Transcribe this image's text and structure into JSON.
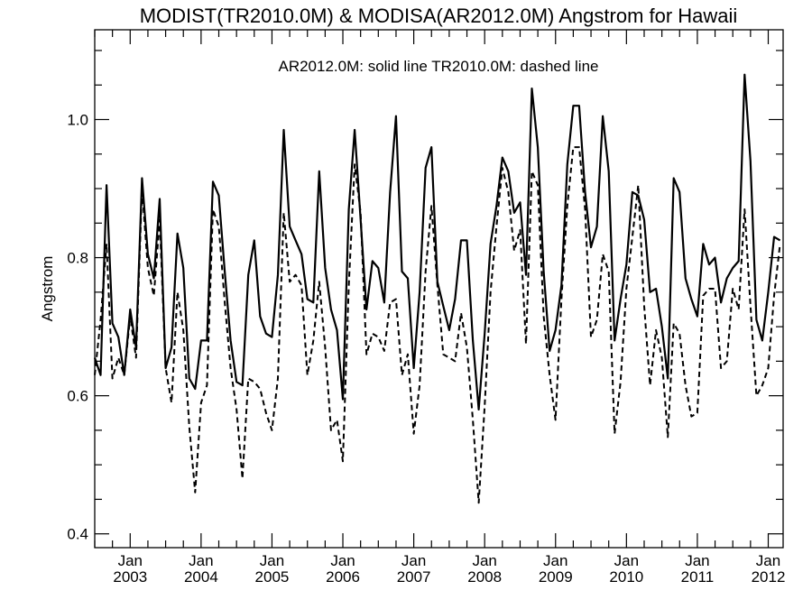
{
  "chart_data": {
    "type": "line",
    "title": "MODIST(TR2010.0M) & MODISA(AR2012.0M)  Angstrom for Hawaii",
    "legend_text": "AR2012.0M: solid line   TR2010.0M: dashed line",
    "legend_placement": "top-center",
    "ylabel": "Angstrom",
    "xlabel": "",
    "xlim": [
      2002.5,
      2012.21
    ],
    "ylim": [
      0.38,
      1.13
    ],
    "yticks": [
      0.4,
      0.6,
      0.8,
      1.0
    ],
    "ytick_labels": [
      "0.4",
      "0.6",
      "0.8",
      "1.0"
    ],
    "yminor_step": 0.05,
    "xticks": [
      {
        "x": 2003,
        "month": "Jan",
        "year": "2003"
      },
      {
        "x": 2004,
        "month": "Jan",
        "year": "2004"
      },
      {
        "x": 2005,
        "month": "Jan",
        "year": "2005"
      },
      {
        "x": 2006,
        "month": "Jan",
        "year": "2006"
      },
      {
        "x": 2007,
        "month": "Jan",
        "year": "2007"
      },
      {
        "x": 2008,
        "month": "Jan",
        "year": "2008"
      },
      {
        "x": 2009,
        "month": "Jan",
        "year": "2009"
      },
      {
        "x": 2010,
        "month": "Jan",
        "year": "2010"
      },
      {
        "x": 2011,
        "month": "Jan",
        "year": "2011"
      },
      {
        "x": 2012,
        "month": "Jan",
        "year": "2012"
      }
    ],
    "grid": false,
    "x_start": 2002.5,
    "x_step": 0.08333,
    "series": [
      {
        "name": "AR2012.0M",
        "style": "solid",
        "color": "#000000",
        "values": [
          0.655,
          0.63,
          0.905,
          0.705,
          0.685,
          0.63,
          0.725,
          0.67,
          0.915,
          0.805,
          0.77,
          0.885,
          0.64,
          0.67,
          0.835,
          0.785,
          0.625,
          0.61,
          0.68,
          0.68,
          0.91,
          0.89,
          0.78,
          0.68,
          0.62,
          0.615,
          0.775,
          0.825,
          0.715,
          0.69,
          0.685,
          0.775,
          0.985,
          0.845,
          0.825,
          0.805,
          0.74,
          0.735,
          0.925,
          0.785,
          0.725,
          0.695,
          0.595,
          0.87,
          0.985,
          0.855,
          0.725,
          0.795,
          0.785,
          0.735,
          0.895,
          1.005,
          0.78,
          0.77,
          0.64,
          0.75,
          0.93,
          0.96,
          0.765,
          0.73,
          0.695,
          0.74,
          0.825,
          0.825,
          0.68,
          0.58,
          0.69,
          0.82,
          0.875,
          0.945,
          0.925,
          0.865,
          0.88,
          0.775,
          1.045,
          0.96,
          0.78,
          0.665,
          0.695,
          0.76,
          0.935,
          1.02,
          1.02,
          0.895,
          0.815,
          0.845,
          1.005,
          0.925,
          0.68,
          0.74,
          0.79,
          0.895,
          0.89,
          0.855,
          0.75,
          0.755,
          0.7,
          0.625,
          0.915,
          0.895,
          0.77,
          0.74,
          0.715,
          0.82,
          0.79,
          0.8,
          0.735,
          0.77,
          0.785,
          0.795,
          1.065,
          0.94,
          0.71,
          0.68,
          0.75,
          0.83,
          0.825
        ]
      },
      {
        "name": "TR2010.0M",
        "style": "dashed",
        "color": "#000000",
        "values": [
          0.63,
          0.71,
          0.82,
          0.625,
          0.655,
          0.63,
          0.715,
          0.655,
          0.9,
          0.785,
          0.745,
          0.855,
          0.64,
          0.59,
          0.75,
          0.695,
          0.555,
          0.46,
          0.59,
          0.615,
          0.87,
          0.845,
          0.735,
          0.64,
          0.58,
          0.48,
          0.625,
          0.62,
          0.61,
          0.575,
          0.55,
          0.625,
          0.865,
          0.765,
          0.775,
          0.76,
          0.63,
          0.68,
          0.765,
          0.67,
          0.55,
          0.565,
          0.505,
          0.76,
          0.935,
          0.865,
          0.66,
          0.69,
          0.685,
          0.665,
          0.735,
          0.74,
          0.63,
          0.66,
          0.545,
          0.615,
          0.78,
          0.875,
          0.76,
          0.66,
          0.655,
          0.65,
          0.72,
          0.67,
          0.565,
          0.445,
          0.585,
          0.75,
          0.845,
          0.93,
          0.895,
          0.81,
          0.84,
          0.675,
          0.925,
          0.905,
          0.715,
          0.63,
          0.565,
          0.74,
          0.875,
          0.96,
          0.96,
          0.87,
          0.685,
          0.71,
          0.805,
          0.78,
          0.545,
          0.62,
          0.755,
          0.83,
          0.905,
          0.73,
          0.615,
          0.695,
          0.655,
          0.54,
          0.705,
          0.69,
          0.615,
          0.57,
          0.575,
          0.745,
          0.755,
          0.755,
          0.64,
          0.65,
          0.755,
          0.725,
          0.87,
          0.73,
          0.6,
          0.615,
          0.64,
          0.745,
          0.82
        ]
      }
    ]
  }
}
